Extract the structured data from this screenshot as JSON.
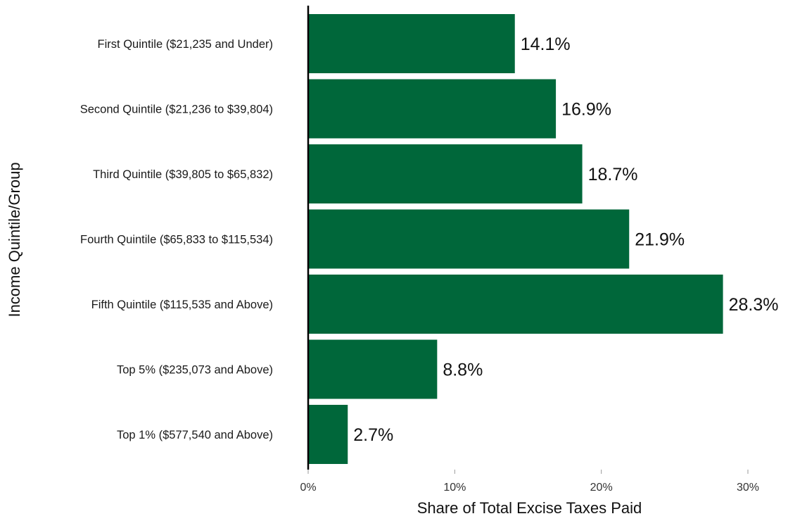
{
  "chart_data": {
    "type": "bar",
    "orientation": "horizontal",
    "categories": [
      "First Quintile ($21,235 and Under)",
      "Second Quintile ($21,236 to $39,804)",
      "Third Quintile ($39,805 to $65,832)",
      "Fourth Quintile ($65,833 to $115,534)",
      "Fifth Quintile ($115,535 and Above)",
      "Top 5% ($235,073 and Above)",
      "Top 1% ($577,540 and Above)"
    ],
    "values": [
      14.1,
      16.9,
      18.7,
      21.9,
      28.3,
      8.8,
      2.7
    ],
    "data_labels": [
      "14.1%",
      "16.9%",
      "18.7%",
      "21.9%",
      "28.3%",
      "8.8%",
      "2.7%"
    ],
    "xlabel": "Share of Total Excise Taxes Paid",
    "ylabel": "Income Quintile/Group",
    "xlim": [
      0,
      30
    ],
    "xticks": [
      0,
      10,
      20,
      30
    ],
    "xtick_labels": [
      "0%",
      "10%",
      "20%",
      "30%"
    ],
    "grid": false,
    "bar_color": "#00673a",
    "axis_color": "#000000"
  }
}
